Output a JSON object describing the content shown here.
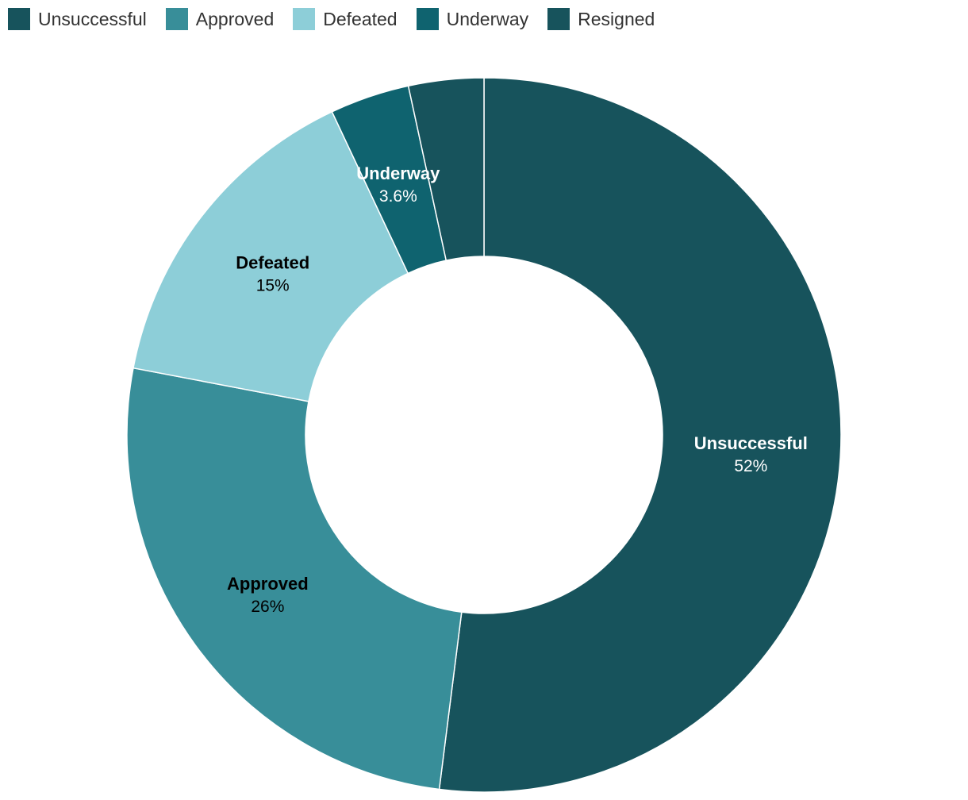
{
  "chart_data": {
    "type": "pie",
    "style": "donut",
    "legend_position": "top-left",
    "slices": [
      {
        "label": "Unsuccessful",
        "value": 52,
        "display": "52%",
        "color": "#17535C",
        "label_color": "#ffffff",
        "show_label": true
      },
      {
        "label": "Approved",
        "value": 26,
        "display": "26%",
        "color": "#388E99",
        "label_color": "#000000",
        "show_label": true
      },
      {
        "label": "Defeated",
        "value": 15,
        "display": "15%",
        "color": "#8DCED8",
        "label_color": "#000000",
        "show_label": true
      },
      {
        "label": "Underway",
        "value": 3.6,
        "display": "3.6%",
        "color": "#0F636F",
        "label_color": "#ffffff",
        "show_label": true
      },
      {
        "label": "Resigned",
        "value": 3.4,
        "display": "",
        "color": "#17535C",
        "label_color": "#ffffff",
        "show_label": false
      }
    ]
  }
}
